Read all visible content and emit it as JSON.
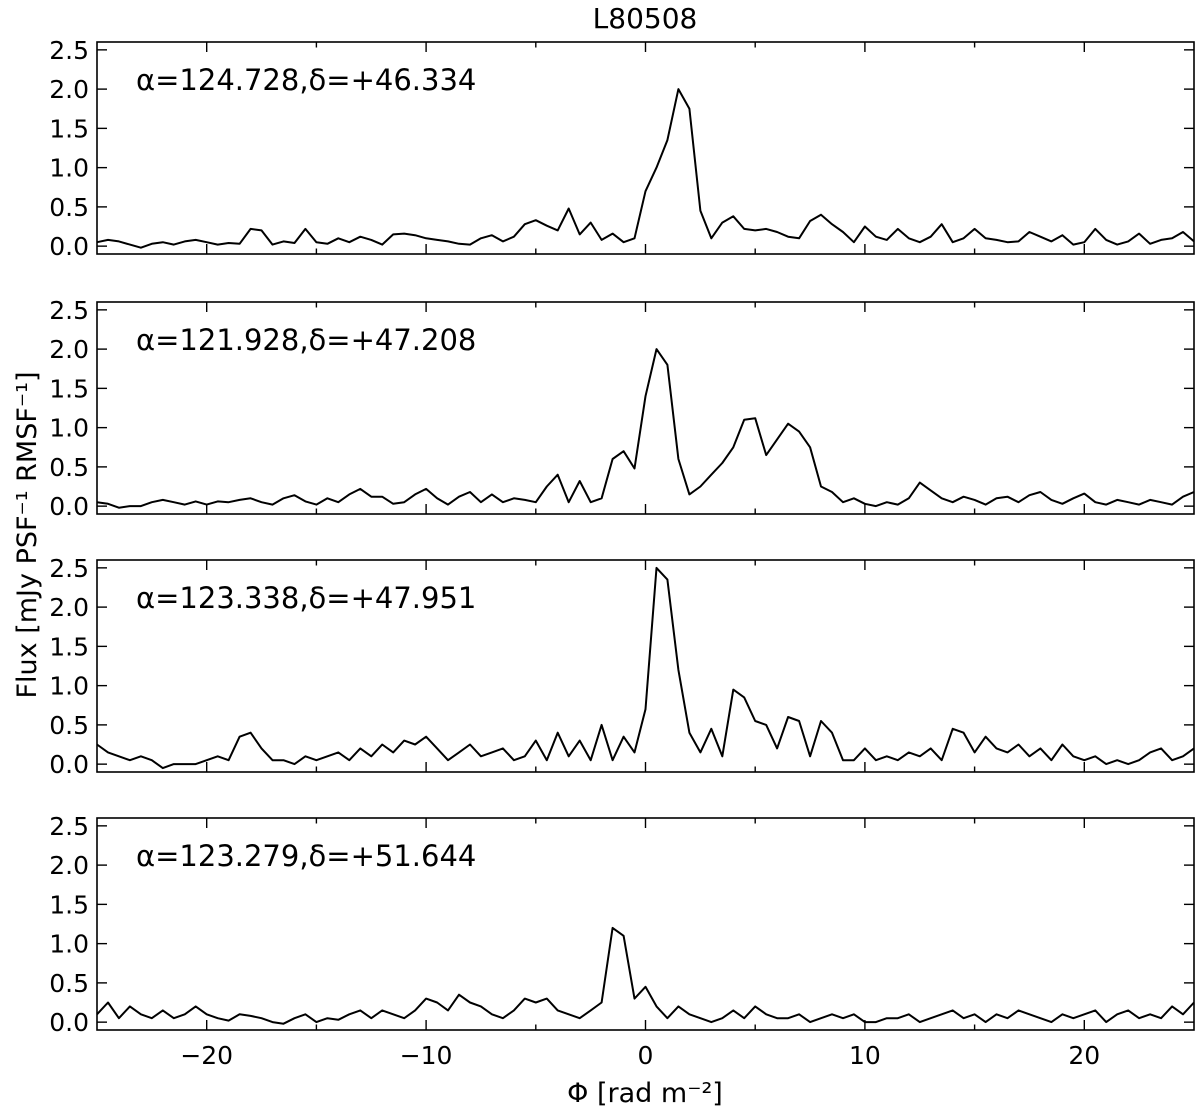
{
  "figure": {
    "title": "L80508",
    "xlabel": "Φ [rad m⁻²]",
    "ylabel": "Flux [mJy PSF⁻¹ RMSF⁻¹]"
  },
  "chart_data": [
    {
      "type": "line",
      "annotation": "α=124.728,δ=+46.334",
      "xlim": [
        -25,
        25
      ],
      "ylim": [
        -0.1,
        2.6
      ],
      "xticks": [
        -20,
        -10,
        0,
        10,
        20
      ],
      "yticks": [
        0.0,
        0.5,
        1.0,
        1.5,
        2.0,
        2.5
      ],
      "ytick_labels": [
        "0.0",
        "0.5",
        "1.0",
        "1.5",
        "2.0",
        "2.5"
      ],
      "x": [
        -25,
        -24.5,
        -24,
        -23.5,
        -23,
        -22.5,
        -22,
        -21.5,
        -21,
        -20.5,
        -20,
        -19.5,
        -19,
        -18.5,
        -18,
        -17.5,
        -17,
        -16.5,
        -16,
        -15.5,
        -15,
        -14.5,
        -14,
        -13.5,
        -13,
        -12.5,
        -12,
        -11.5,
        -11,
        -10.5,
        -10,
        -9.5,
        -9,
        -8.5,
        -8,
        -7.5,
        -7,
        -6.5,
        -6,
        -5.5,
        -5,
        -4.5,
        -4,
        -3.5,
        -3,
        -2.5,
        -2,
        -1.5,
        -1,
        -0.5,
        0,
        0.5,
        1,
        1.5,
        2,
        2.5,
        3,
        3.5,
        4,
        4.5,
        5,
        5.5,
        6,
        6.5,
        7,
        7.5,
        8,
        8.5,
        9,
        9.5,
        10,
        10.5,
        11,
        11.5,
        12,
        12.5,
        13,
        13.5,
        14,
        14.5,
        15,
        15.5,
        16,
        16.5,
        17,
        17.5,
        18,
        18.5,
        19,
        19.5,
        20,
        20.5,
        21,
        21.5,
        22,
        22.5,
        23,
        23.5,
        24,
        24.5,
        25
      ],
      "y": [
        0.05,
        0.08,
        0.06,
        0.02,
        -0.02,
        0.03,
        0.05,
        0.02,
        0.06,
        0.08,
        0.05,
        0.02,
        0.04,
        0.03,
        0.22,
        0.2,
        0.02,
        0.06,
        0.04,
        0.22,
        0.05,
        0.03,
        0.1,
        0.05,
        0.12,
        0.08,
        0.02,
        0.15,
        0.16,
        0.14,
        0.1,
        0.08,
        0.06,
        0.03,
        0.02,
        0.1,
        0.14,
        0.06,
        0.12,
        0.28,
        0.33,
        0.26,
        0.2,
        0.48,
        0.15,
        0.3,
        0.08,
        0.16,
        0.05,
        0.1,
        0.7,
        1.0,
        1.35,
        2.0,
        1.75,
        0.45,
        0.1,
        0.3,
        0.38,
        0.22,
        0.2,
        0.22,
        0.18,
        0.12,
        0.1,
        0.32,
        0.4,
        0.28,
        0.18,
        0.05,
        0.25,
        0.12,
        0.08,
        0.22,
        0.1,
        0.05,
        0.12,
        0.28,
        0.05,
        0.1,
        0.22,
        0.1,
        0.08,
        0.05,
        0.06,
        0.18,
        0.12,
        0.06,
        0.14,
        0.02,
        0.05,
        0.22,
        0.08,
        0.02,
        0.06,
        0.16,
        0.03,
        0.08,
        0.1,
        0.18,
        0.06
      ]
    },
    {
      "type": "line",
      "annotation": "α=121.928,δ=+47.208",
      "xlim": [
        -25,
        25
      ],
      "ylim": [
        -0.1,
        2.6
      ],
      "xticks": [
        -20,
        -10,
        0,
        10,
        20
      ],
      "yticks": [
        0.0,
        0.5,
        1.0,
        1.5,
        2.0,
        2.5
      ],
      "ytick_labels": [
        "0.0",
        "0.5",
        "1.0",
        "1.5",
        "2.0",
        "2.5"
      ],
      "x": [
        -25,
        -24.5,
        -24,
        -23.5,
        -23,
        -22.5,
        -22,
        -21.5,
        -21,
        -20.5,
        -20,
        -19.5,
        -19,
        -18.5,
        -18,
        -17.5,
        -17,
        -16.5,
        -16,
        -15.5,
        -15,
        -14.5,
        -14,
        -13.5,
        -13,
        -12.5,
        -12,
        -11.5,
        -11,
        -10.5,
        -10,
        -9.5,
        -9,
        -8.5,
        -8,
        -7.5,
        -7,
        -6.5,
        -6,
        -5.5,
        -5,
        -4.5,
        -4,
        -3.5,
        -3,
        -2.5,
        -2,
        -1.5,
        -1,
        -0.5,
        0,
        0.5,
        1,
        1.5,
        2,
        2.5,
        3,
        3.5,
        4,
        4.5,
        5,
        5.5,
        6,
        6.5,
        7,
        7.5,
        8,
        8.5,
        9,
        9.5,
        10,
        10.5,
        11,
        11.5,
        12,
        12.5,
        13,
        13.5,
        14,
        14.5,
        15,
        15.5,
        16,
        16.5,
        17,
        17.5,
        18,
        18.5,
        19,
        19.5,
        20,
        20.5,
        21,
        21.5,
        22,
        22.5,
        23,
        23.5,
        24,
        24.5,
        25
      ],
      "y": [
        0.05,
        0.03,
        -0.02,
        0.0,
        0.0,
        0.05,
        0.08,
        0.05,
        0.02,
        0.06,
        0.02,
        0.06,
        0.05,
        0.08,
        0.1,
        0.05,
        0.02,
        0.1,
        0.14,
        0.06,
        0.02,
        0.1,
        0.05,
        0.15,
        0.22,
        0.12,
        0.12,
        0.03,
        0.05,
        0.15,
        0.22,
        0.1,
        0.02,
        0.12,
        0.18,
        0.05,
        0.15,
        0.05,
        0.1,
        0.08,
        0.05,
        0.25,
        0.4,
        0.05,
        0.32,
        0.05,
        0.1,
        0.6,
        0.7,
        0.48,
        1.4,
        2.0,
        1.8,
        0.6,
        0.15,
        0.25,
        0.4,
        0.55,
        0.75,
        1.1,
        1.12,
        0.65,
        0.85,
        1.05,
        0.95,
        0.75,
        0.25,
        0.18,
        0.05,
        0.1,
        0.03,
        0.0,
        0.05,
        0.02,
        0.1,
        0.3,
        0.2,
        0.1,
        0.05,
        0.12,
        0.08,
        0.02,
        0.1,
        0.12,
        0.05,
        0.14,
        0.18,
        0.08,
        0.03,
        0.1,
        0.16,
        0.05,
        0.02,
        0.08,
        0.05,
        0.02,
        0.08,
        0.05,
        0.02,
        0.12,
        0.18
      ]
    },
    {
      "type": "line",
      "annotation": "α=123.338,δ=+47.951",
      "xlim": [
        -25,
        25
      ],
      "ylim": [
        -0.1,
        2.6
      ],
      "xticks": [
        -20,
        -10,
        0,
        10,
        20
      ],
      "yticks": [
        0.0,
        0.5,
        1.0,
        1.5,
        2.0,
        2.5
      ],
      "ytick_labels": [
        "0.0",
        "0.5",
        "1.0",
        "1.5",
        "2.0",
        "2.5"
      ],
      "x": [
        -25,
        -24.5,
        -24,
        -23.5,
        -23,
        -22.5,
        -22,
        -21.5,
        -21,
        -20.5,
        -20,
        -19.5,
        -19,
        -18.5,
        -18,
        -17.5,
        -17,
        -16.5,
        -16,
        -15.5,
        -15,
        -14.5,
        -14,
        -13.5,
        -13,
        -12.5,
        -12,
        -11.5,
        -11,
        -10.5,
        -10,
        -9.5,
        -9,
        -8.5,
        -8,
        -7.5,
        -7,
        -6.5,
        -6,
        -5.5,
        -5,
        -4.5,
        -4,
        -3.5,
        -3,
        -2.5,
        -2,
        -1.5,
        -1,
        -0.5,
        0,
        0.5,
        1,
        1.5,
        2,
        2.5,
        3,
        3.5,
        4,
        4.5,
        5,
        5.5,
        6,
        6.5,
        7,
        7.5,
        8,
        8.5,
        9,
        9.5,
        10,
        10.5,
        11,
        11.5,
        12,
        12.5,
        13,
        13.5,
        14,
        14.5,
        15,
        15.5,
        16,
        16.5,
        17,
        17.5,
        18,
        18.5,
        19,
        19.5,
        20,
        20.5,
        21,
        21.5,
        22,
        22.5,
        23,
        23.5,
        24,
        24.5,
        25
      ],
      "y": [
        0.25,
        0.15,
        0.1,
        0.05,
        0.1,
        0.05,
        -0.05,
        0.0,
        0.0,
        0.0,
        0.05,
        0.1,
        0.05,
        0.35,
        0.4,
        0.2,
        0.05,
        0.05,
        0.0,
        0.1,
        0.05,
        0.1,
        0.15,
        0.05,
        0.2,
        0.1,
        0.25,
        0.15,
        0.3,
        0.25,
        0.35,
        0.2,
        0.05,
        0.15,
        0.25,
        0.1,
        0.15,
        0.2,
        0.05,
        0.1,
        0.3,
        0.05,
        0.4,
        0.1,
        0.3,
        0.05,
        0.5,
        0.05,
        0.35,
        0.15,
        0.7,
        2.5,
        2.35,
        1.2,
        0.4,
        0.15,
        0.45,
        0.1,
        0.95,
        0.85,
        0.55,
        0.5,
        0.2,
        0.6,
        0.55,
        0.1,
        0.55,
        0.4,
        0.05,
        0.05,
        0.2,
        0.05,
        0.1,
        0.05,
        0.15,
        0.1,
        0.2,
        0.05,
        0.45,
        0.4,
        0.15,
        0.35,
        0.2,
        0.15,
        0.25,
        0.1,
        0.2,
        0.05,
        0.25,
        0.1,
        0.05,
        0.1,
        0.0,
        0.05,
        0.0,
        0.05,
        0.15,
        0.2,
        0.05,
        0.1,
        0.2
      ]
    },
    {
      "type": "line",
      "annotation": "α=123.279,δ=+51.644",
      "xlim": [
        -25,
        25
      ],
      "ylim": [
        -0.1,
        2.6
      ],
      "xticks": [
        -20,
        -10,
        0,
        10,
        20
      ],
      "xtick_labels": [
        "−20",
        "−10",
        "0",
        "10",
        "20"
      ],
      "yticks": [
        0.0,
        0.5,
        1.0,
        1.5,
        2.0,
        2.5
      ],
      "ytick_labels": [
        "0.0",
        "0.5",
        "1.0",
        "1.5",
        "2.0",
        "2.5"
      ],
      "x": [
        -25,
        -24.5,
        -24,
        -23.5,
        -23,
        -22.5,
        -22,
        -21.5,
        -21,
        -20.5,
        -20,
        -19.5,
        -19,
        -18.5,
        -18,
        -17.5,
        -17,
        -16.5,
        -16,
        -15.5,
        -15,
        -14.5,
        -14,
        -13.5,
        -13,
        -12.5,
        -12,
        -11.5,
        -11,
        -10.5,
        -10,
        -9.5,
        -9,
        -8.5,
        -8,
        -7.5,
        -7,
        -6.5,
        -6,
        -5.5,
        -5,
        -4.5,
        -4,
        -3.5,
        -3,
        -2.5,
        -2,
        -1.5,
        -1,
        -0.5,
        0,
        0.5,
        1,
        1.5,
        2,
        2.5,
        3,
        3.5,
        4,
        4.5,
        5,
        5.5,
        6,
        6.5,
        7,
        7.5,
        8,
        8.5,
        9,
        9.5,
        10,
        10.5,
        11,
        11.5,
        12,
        12.5,
        13,
        13.5,
        14,
        14.5,
        15,
        15.5,
        16,
        16.5,
        17,
        17.5,
        18,
        18.5,
        19,
        19.5,
        20,
        20.5,
        21,
        21.5,
        22,
        22.5,
        23,
        23.5,
        24,
        24.5,
        25
      ],
      "y": [
        0.1,
        0.25,
        0.05,
        0.2,
        0.1,
        0.05,
        0.15,
        0.05,
        0.1,
        0.2,
        0.1,
        0.05,
        0.02,
        0.1,
        0.08,
        0.05,
        0.0,
        -0.02,
        0.05,
        0.1,
        0.0,
        0.05,
        0.03,
        0.1,
        0.15,
        0.05,
        0.15,
        0.1,
        0.05,
        0.15,
        0.3,
        0.25,
        0.15,
        0.35,
        0.25,
        0.2,
        0.1,
        0.05,
        0.15,
        0.3,
        0.25,
        0.3,
        0.15,
        0.1,
        0.05,
        0.15,
        0.25,
        1.2,
        1.1,
        0.3,
        0.45,
        0.2,
        0.05,
        0.2,
        0.1,
        0.05,
        0.0,
        0.05,
        0.15,
        0.05,
        0.2,
        0.1,
        0.05,
        0.05,
        0.1,
        0.0,
        0.05,
        0.1,
        0.05,
        0.1,
        0.0,
        0.0,
        0.05,
        0.05,
        0.1,
        0.0,
        0.05,
        0.1,
        0.15,
        0.05,
        0.1,
        0.0,
        0.1,
        0.05,
        0.15,
        0.1,
        0.05,
        0.0,
        0.1,
        0.05,
        0.1,
        0.15,
        0.0,
        0.1,
        0.15,
        0.05,
        0.1,
        0.05,
        0.2,
        0.1,
        0.25
      ]
    }
  ]
}
